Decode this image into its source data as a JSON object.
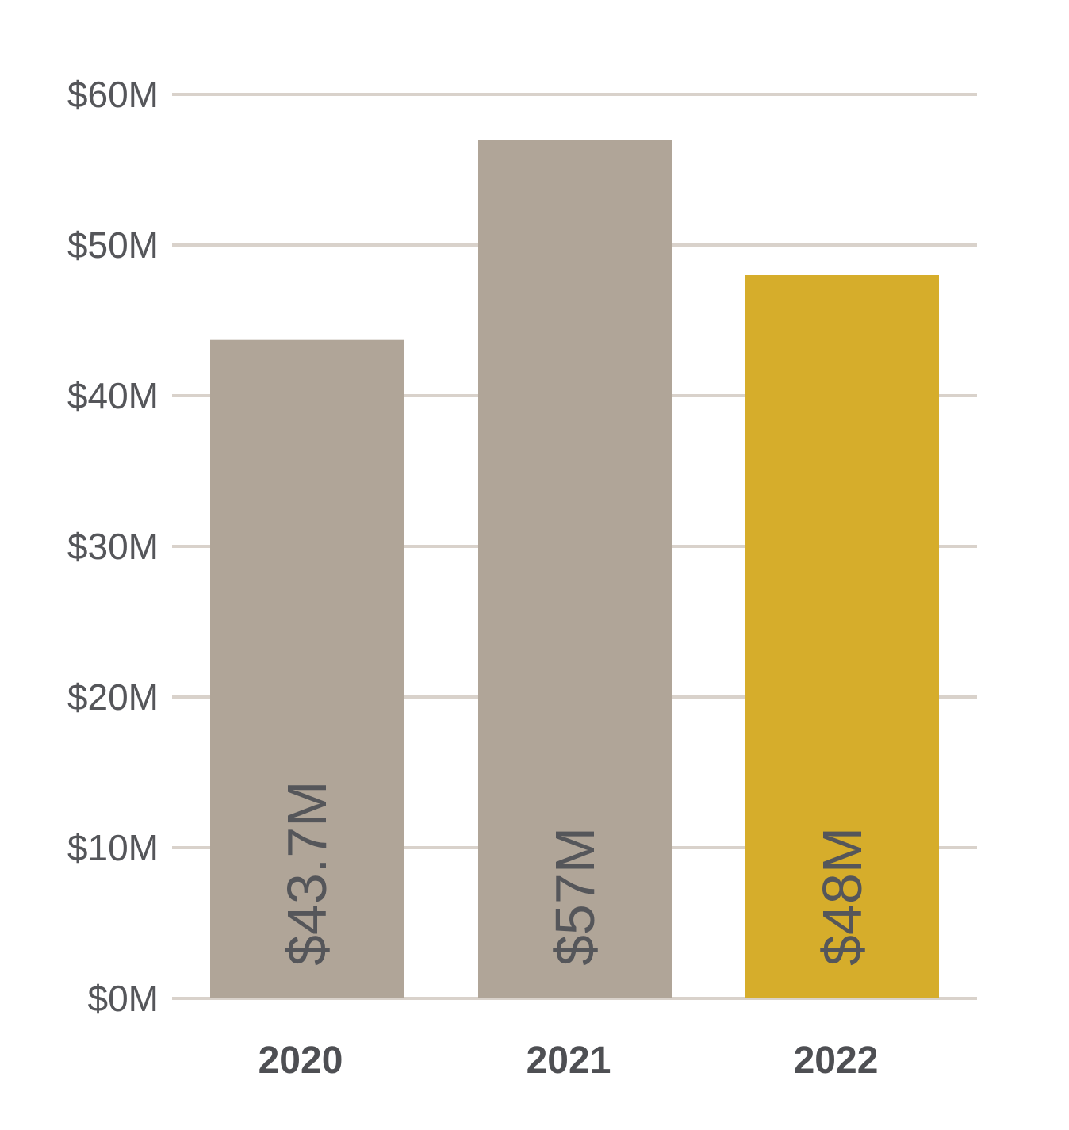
{
  "chart_data": {
    "type": "bar",
    "title": "",
    "xlabel": "",
    "ylabel": "",
    "categories": [
      "2020",
      "2021",
      "2022"
    ],
    "values": [
      43.7,
      57,
      48
    ],
    "value_labels": [
      "$43.7M",
      "$57M",
      "$48M"
    ],
    "bar_colors": [
      "#b0a598",
      "#b0a598",
      "#d6ad2b"
    ],
    "grid_color": "#d9d2cb",
    "ylim": [
      0,
      60
    ],
    "yticks": [
      0,
      10,
      20,
      30,
      40,
      50,
      60
    ],
    "ytick_labels": [
      "$0M",
      "$10M",
      "$20M",
      "$30M",
      "$40M",
      "$50M",
      "$60M"
    ],
    "grid": true
  }
}
